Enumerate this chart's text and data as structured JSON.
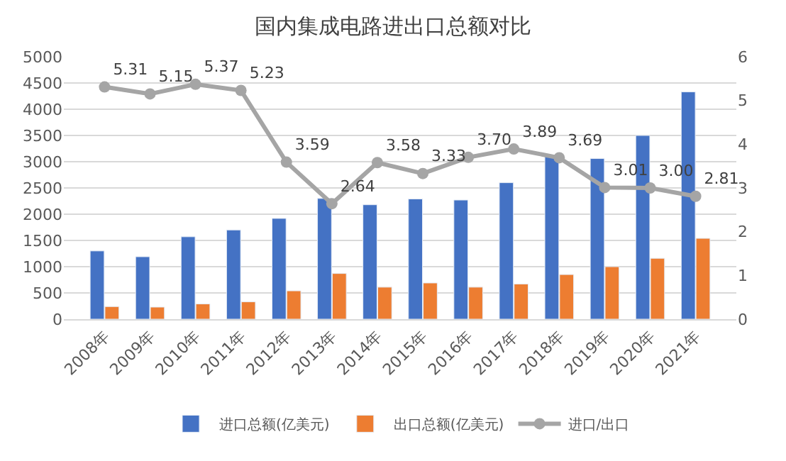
{
  "chart_data": {
    "type": "bar",
    "title": "国内集成电路进出口总额对比",
    "categories": [
      "2008年",
      "2009年",
      "2010年",
      "2011年",
      "2012年",
      "2013年",
      "2014年",
      "2015年",
      "2016年",
      "2017年",
      "2018年",
      "2019年",
      "2020年",
      "2021年"
    ],
    "series": [
      {
        "name": "进口总额(亿美元)",
        "color": "#4472c4",
        "values": [
          1300,
          1190,
          1570,
          1700,
          1920,
          2300,
          2180,
          2290,
          2270,
          2600,
          3120,
          3060,
          3500,
          4330
        ]
      },
      {
        "name": "出口总额(亿美元)",
        "color": "#ed7d31",
        "values": [
          240,
          230,
          290,
          330,
          540,
          870,
          610,
          690,
          610,
          670,
          850,
          1000,
          1160,
          1540
        ]
      },
      {
        "name": "进口/出口",
        "color": "#a5a5a5",
        "type": "line",
        "axis": "y2",
        "marker": "circle",
        "data_labels": true,
        "values": [
          5.31,
          5.15,
          5.37,
          5.23,
          3.59,
          2.64,
          3.58,
          3.33,
          3.7,
          3.89,
          3.69,
          3.01,
          3.0,
          2.81
        ],
        "value_labels": [
          "5.31",
          "5.15",
          "5.37",
          "5.23",
          "3.59",
          "2.64",
          "3.58",
          "3.33",
          "3.70",
          "3.89",
          "3.69",
          "3.01",
          "3.00",
          "2.81"
        ]
      }
    ],
    "ylim": [
      0,
      5000
    ],
    "yticks": [
      0,
      500,
      1000,
      1500,
      2000,
      2500,
      3000,
      3500,
      4000,
      4500,
      5000
    ],
    "y2lim": [
      0,
      6
    ],
    "y2ticks": [
      0,
      1,
      2,
      3,
      4,
      5,
      6
    ],
    "grid": "y",
    "legend": "bottom"
  }
}
